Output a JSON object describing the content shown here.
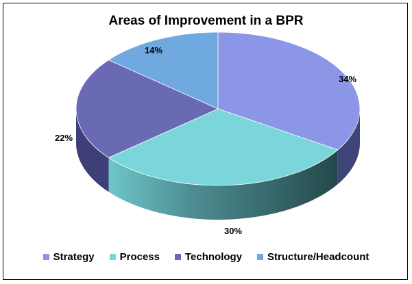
{
  "chart_data": {
    "type": "pie",
    "title": "Areas of Improvement in a BPR",
    "legend_position": "bottom",
    "slices": [
      {
        "name": "Strategy",
        "value": 34,
        "label": "34%",
        "color": "#8C96E6",
        "side_color": "#3E4477"
      },
      {
        "name": "Process",
        "value": 30,
        "label": "30%",
        "color": "#7AD6DA",
        "side_color": "#2F5F62"
      },
      {
        "name": "Technology",
        "value": 22,
        "label": "22%",
        "color": "#6A6AB4",
        "side_color": "#3E3E78"
      },
      {
        "name": "Structure/Headcount",
        "value": 14,
        "label": "14%",
        "color": "#70A8E0",
        "side_color": "#3A6A98"
      }
    ]
  }
}
